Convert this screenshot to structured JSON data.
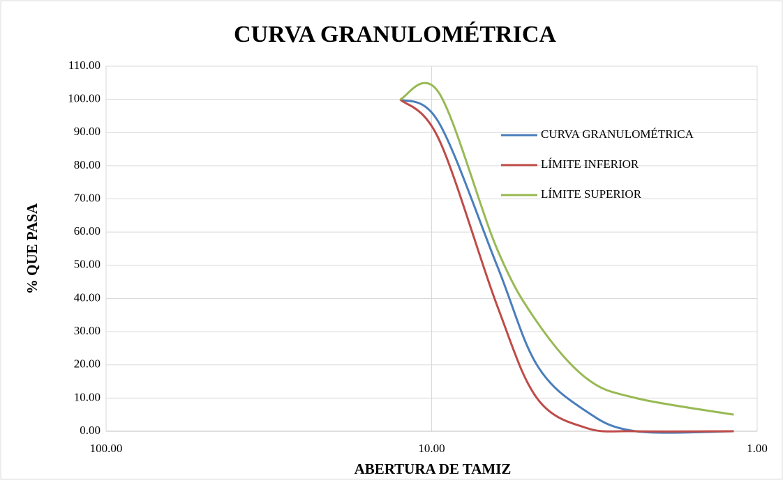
{
  "chart_data": {
    "type": "line",
    "title": "CURVA GRANULOMÉTRICA",
    "x_label": "ABERTURA DE TAMIZ",
    "y_label": "% QUE PASA",
    "x": [
      12.5,
      9.5,
      6.3,
      4.75,
      3.35,
      2.36,
      1.18
    ],
    "series": [
      {
        "name": "CURVA GRANULOMÉTRICA",
        "color": "#4a7ebb",
        "values": [
          100,
          93,
          50,
          20,
          6,
          0,
          0
        ]
      },
      {
        "name": "LÍMITE INFERIOR",
        "color": "#be4b48",
        "values": [
          100,
          88,
          38,
          10,
          1,
          0,
          0
        ]
      },
      {
        "name": "LÍMITE SUPERIOR",
        "color": "#98b954",
        "values": [
          100,
          102,
          55,
          33,
          16,
          10,
          5
        ]
      }
    ],
    "xlim": [
      100,
      1
    ],
    "x_log": true,
    "xticks": [
      {
        "value": 100,
        "label": "100.00"
      },
      {
        "value": 10,
        "label": "10.00"
      },
      {
        "value": 1,
        "label": "1.00"
      }
    ],
    "ylim": [
      0,
      110
    ],
    "yticks": [
      {
        "value": 0,
        "label": "0.00"
      },
      {
        "value": 10,
        "label": "10.00"
      },
      {
        "value": 20,
        "label": "20.00"
      },
      {
        "value": 30,
        "label": "30.00"
      },
      {
        "value": 40,
        "label": "40.00"
      },
      {
        "value": 50,
        "label": "50.00"
      },
      {
        "value": 60,
        "label": "60.00"
      },
      {
        "value": 70,
        "label": "70.00"
      },
      {
        "value": 80,
        "label": "80.00"
      },
      {
        "value": 90,
        "label": "90.00"
      },
      {
        "value": 100,
        "label": "100.00"
      },
      {
        "value": 110,
        "label": "110.00"
      }
    ],
    "grid": true,
    "legend": "upper right"
  }
}
